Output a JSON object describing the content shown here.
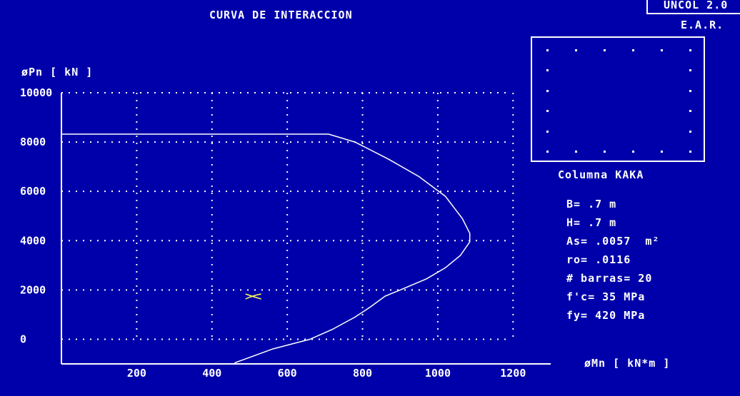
{
  "header": {
    "title": "CURVA DE INTERACCION",
    "program": "UNCOL 2.0",
    "author": "E.A.R."
  },
  "section": {
    "caption": "Columna KAKA",
    "bars_per_side": 6,
    "total_bars": 20,
    "properties": [
      "B= .7 m",
      "H= .7 m",
      "As= .0057  m²",
      "ro= .0116",
      "# barras= 20",
      "f'c= 35 MPa",
      "fy= 420 MPa"
    ]
  },
  "colors": {
    "background": "#0000AA",
    "foreground": "#FFFFFF",
    "load_point": "#FFFF55"
  },
  "chart_data": {
    "type": "line",
    "title": "CURVA DE INTERACCION",
    "xlabel": "øMn [ kN*m ]",
    "ylabel": "øPn [ kN ]",
    "xlim": [
      0,
      1300
    ],
    "ylim": [
      -1000,
      10000
    ],
    "x_ticks": [
      200,
      400,
      600,
      800,
      1000,
      1200
    ],
    "y_ticks": [
      0,
      2000,
      4000,
      6000,
      8000,
      10000
    ],
    "x_grid": [
      200,
      400,
      600,
      800,
      1000,
      1200
    ],
    "y_grid": [
      0,
      2000,
      4000,
      6000,
      8000,
      10000
    ],
    "grid": true,
    "series": [
      {
        "type": "line",
        "x": [
          0,
          710,
          780,
          870,
          950,
          1020,
          1065,
          1085,
          1085,
          1060,
          1020,
          970,
          900,
          860,
          820,
          780,
          720,
          660,
          560,
          460
        ],
        "y": [
          8320,
          8320,
          8000,
          7300,
          6600,
          5800,
          4900,
          4300,
          3950,
          3400,
          2900,
          2450,
          2000,
          1750,
          1300,
          900,
          400,
          0,
          -400,
          -960
        ]
      },
      {
        "type": "scatter",
        "marker": "x",
        "x": [
          510
        ],
        "y": [
          1750
        ]
      }
    ]
  }
}
